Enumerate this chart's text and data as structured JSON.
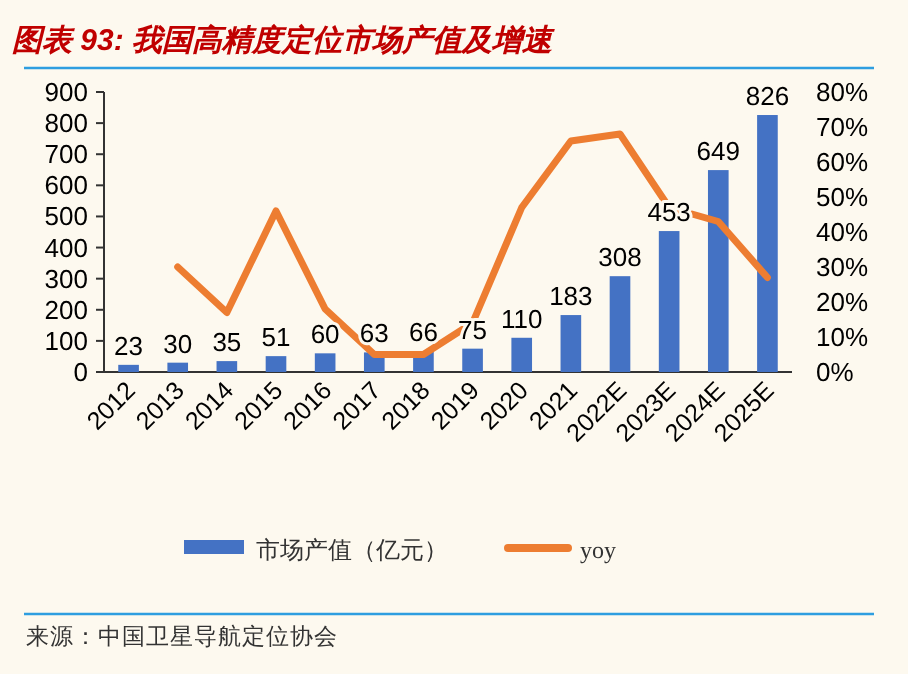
{
  "chart_data": {
    "type": "bar",
    "title": "图表 93: 我国高精度定位市场产值及增速",
    "categories": [
      "2012",
      "2013",
      "2014",
      "2015",
      "2016",
      "2017",
      "2018",
      "2019",
      "2020",
      "2021",
      "2022E",
      "2023E",
      "2024E",
      "2025E"
    ],
    "series": [
      {
        "name": "市场产值（亿元）",
        "color": "#4472c4",
        "values": [
          23,
          30,
          35,
          51,
          60,
          63,
          66,
          75,
          110,
          183,
          308,
          453,
          649,
          826
        ],
        "value_labels": [
          "23",
          "30",
          "35",
          "51",
          "60",
          "63",
          "66",
          "75",
          "110",
          "183",
          "308",
          "453",
          "649",
          "826"
        ]
      },
      {
        "name": "yoy",
        "type": "line",
        "axis": "y2",
        "color": "#ed7d31",
        "values": [
          null,
          30,
          17,
          46,
          18,
          5,
          5,
          14,
          47,
          66,
          68,
          47,
          43,
          27
        ]
      }
    ],
    "ylim": [
      0,
      900
    ],
    "yticks": [
      0,
      100,
      200,
      300,
      400,
      500,
      600,
      700,
      800,
      900
    ],
    "y2lim": [
      0,
      80
    ],
    "y2ticks": [
      {
        "value": 0,
        "label": "0%"
      },
      {
        "value": 10,
        "label": "10%"
      },
      {
        "value": 20,
        "label": "20%"
      },
      {
        "value": 30,
        "label": "30%"
      },
      {
        "value": 40,
        "label": "40%"
      },
      {
        "value": 50,
        "label": "50%"
      },
      {
        "value": 60,
        "label": "60%"
      },
      {
        "value": 70,
        "label": "70%"
      },
      {
        "value": 80,
        "label": "80%"
      }
    ],
    "grid": false,
    "legend": "bottom",
    "marker": "none",
    "annotations": [
      "来源：中国卫星导航定位协会"
    ]
  }
}
